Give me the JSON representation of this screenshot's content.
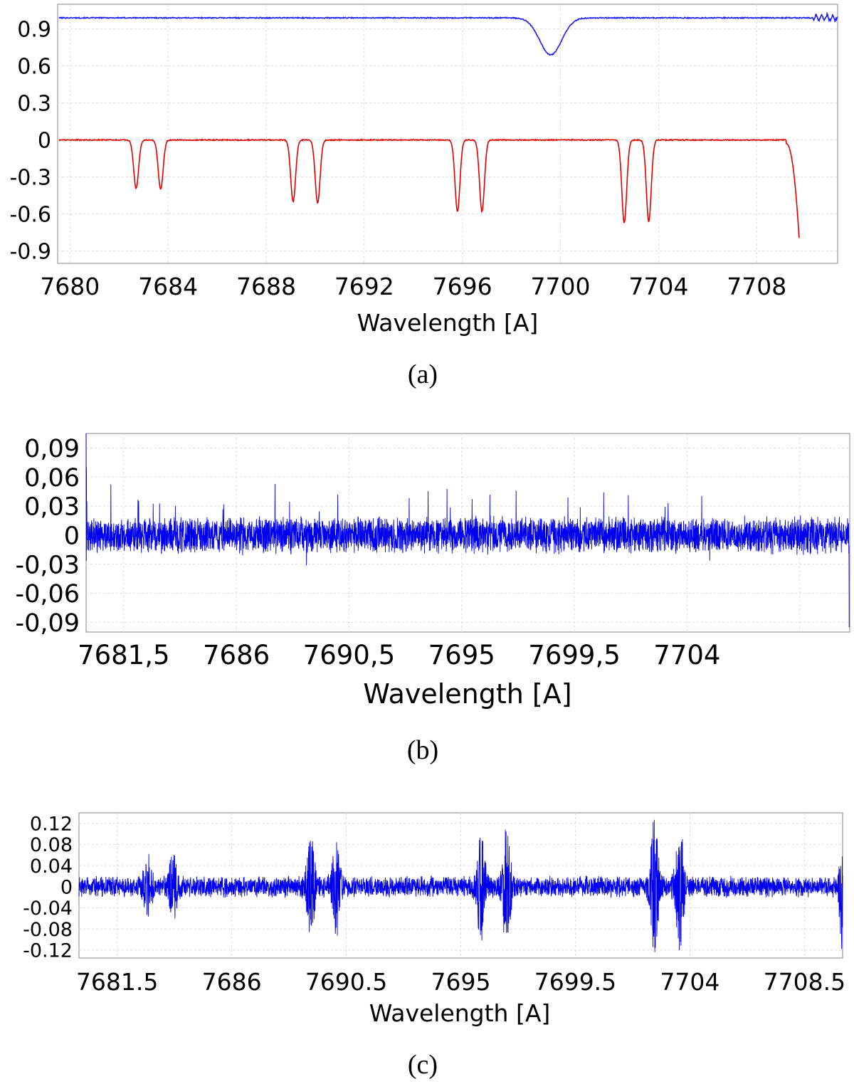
{
  "figure": {
    "panels": [
      {
        "caption": "(a)"
      },
      {
        "caption": "(b)"
      },
      {
        "caption": "(c)"
      }
    ]
  },
  "chart_data": [
    {
      "type": "line",
      "xlabel": "Wavelength [A]",
      "xlim": [
        7679.5,
        7711.3
      ],
      "ylim": [
        -1.0,
        1.1
      ],
      "xticks": [
        7680,
        7684,
        7688,
        7692,
        7696,
        7700,
        7704,
        7708
      ],
      "xtick_labels": [
        "7680",
        "7684",
        "7688",
        "7692",
        "7696",
        "7700",
        "7704",
        "7708"
      ],
      "yticks": [
        0.9,
        0.6,
        0.3,
        0,
        -0.3,
        -0.6,
        -0.9
      ],
      "ytick_labels": [
        "0.9",
        "0.6",
        "0.3",
        "0",
        "-0.3",
        "-0.6",
        "-0.9"
      ],
      "grid": true,
      "colors": {
        "blue": "#1a1aff",
        "red": "#e00000"
      },
      "series": [
        {
          "color": "#1a1aff",
          "baseline": 0.99,
          "noise": 0.004,
          "features": [
            {
              "center": 7699.6,
              "depth": 0.3,
              "width": 0.45
            }
          ],
          "end_wiggle": {
            "from": 7710.3,
            "to": 7711.3,
            "amplitude": 0.03
          }
        },
        {
          "color": "#e00000",
          "baseline": 0.0,
          "noise": 0.004,
          "x_end": 7709.75,
          "features": [
            {
              "center": 7682.7,
              "depth": 0.39,
              "width": 0.1
            },
            {
              "center": 7683.7,
              "depth": 0.4,
              "width": 0.1
            },
            {
              "center": 7689.1,
              "depth": 0.5,
              "width": 0.1
            },
            {
              "center": 7690.1,
              "depth": 0.51,
              "width": 0.1
            },
            {
              "center": 7695.8,
              "depth": 0.58,
              "width": 0.1
            },
            {
              "center": 7696.8,
              "depth": 0.58,
              "width": 0.1
            },
            {
              "center": 7702.6,
              "depth": 0.67,
              "width": 0.1
            },
            {
              "center": 7703.6,
              "depth": 0.66,
              "width": 0.1
            }
          ],
          "end_drop": {
            "from": 7709.2,
            "to": 7709.75,
            "min": -0.86
          }
        }
      ]
    },
    {
      "type": "line",
      "xlabel": "Wavelength [A]",
      "xlim": [
        7680.0,
        7710.5
      ],
      "ylim": [
        -0.1,
        0.105
      ],
      "xticks": [
        7681.5,
        7686,
        7690.5,
        7695,
        7699.5,
        7704,
        7708.5
      ],
      "xtick_labels": [
        "7681,5",
        "7686",
        "7690,5",
        "7695",
        "7699,5",
        "7704",
        ""
      ],
      "yticks": [
        0.09,
        0.06,
        0.03,
        0,
        -0.03,
        -0.06,
        -0.09
      ],
      "ytick_labels": [
        "0,09",
        "0,06",
        "0,03",
        "0",
        "-0,03",
        "-0,06",
        "-0,09"
      ],
      "grid": true,
      "series": [
        {
          "color": "#0000ee",
          "baseline": 0.0,
          "noise_amplitude": 0.016,
          "spike_max": 0.055,
          "edge_spike": 0.105
        }
      ]
    },
    {
      "type": "line",
      "xlabel": "Wavelength [A]",
      "xlim": [
        7680.0,
        7710.0
      ],
      "ylim": [
        -0.135,
        0.14
      ],
      "xticks": [
        7681.5,
        7686,
        7690.5,
        7695,
        7699.5,
        7704,
        7708.5
      ],
      "xtick_labels": [
        "7681.5",
        "7686",
        "7690.5",
        "7695",
        "7699.5",
        "7704",
        "7708.5"
      ],
      "yticks": [
        0.12,
        0.08,
        0.04,
        0,
        -0.04,
        -0.08,
        -0.12
      ],
      "ytick_labels": [
        "0.12",
        "0.08",
        "0.04",
        "0",
        "-0.04",
        "-0.08",
        "-0.12"
      ],
      "grid": true,
      "series": [
        {
          "color": "#0000ee",
          "baseline": 0.0,
          "noise_amplitude": 0.018,
          "bursts": [
            {
              "center": 7682.7,
              "amplitude": 0.075
            },
            {
              "center": 7683.7,
              "amplitude": 0.075
            },
            {
              "center": 7689.1,
              "amplitude": 0.105
            },
            {
              "center": 7690.1,
              "amplitude": 0.1
            },
            {
              "center": 7695.8,
              "amplitude": 0.115
            },
            {
              "center": 7696.8,
              "amplitude": 0.125
            },
            {
              "center": 7702.6,
              "amplitude": 0.135
            },
            {
              "center": 7703.6,
              "amplitude": 0.13
            }
          ],
          "edge_spike": 0.14
        }
      ]
    }
  ]
}
